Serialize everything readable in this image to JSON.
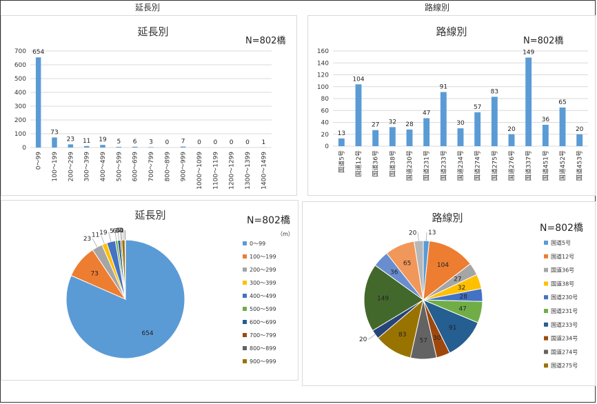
{
  "sections": {
    "left": "延長別",
    "right": "路線別"
  },
  "colors": {
    "bar": "#5b9bd5",
    "grid": "#d9d9d9",
    "length_pie": [
      "#5b9bd5",
      "#ed7d31",
      "#a5a5a5",
      "#ffc000",
      "#4472c4",
      "#70ad47",
      "#255e91",
      "#9e480e",
      "#636363",
      "#997300",
      "#264478",
      "#43682b",
      "#698ed0",
      "#f1975a",
      "#b7b7b7"
    ],
    "route_pie": [
      "#5b9bd5",
      "#ed7d31",
      "#a5a5a5",
      "#ffc000",
      "#4472c4",
      "#70ad47",
      "#255e91",
      "#9e480e",
      "#636363",
      "#997300",
      "#264478",
      "#43682b",
      "#698ed0",
      "#f1975a",
      "#b7b7b7"
    ]
  },
  "chart_data": [
    {
      "id": "length-bar",
      "type": "bar",
      "title": "延長別",
      "annotation": "N=802橋",
      "categories": [
        "0～99",
        "100～199",
        "200～299",
        "300～399",
        "400～499",
        "500～599",
        "600～699",
        "700～799",
        "800～899",
        "900～999",
        "1000～1099",
        "1100～1199",
        "1200～1299",
        "1300～1399",
        "1400～1499"
      ],
      "values": [
        654,
        73,
        23,
        11,
        19,
        5,
        6,
        3,
        0,
        7,
        0,
        0,
        0,
        0,
        1
      ],
      "ylim": [
        0,
        700
      ],
      "yticks": [
        "0",
        "100",
        "200",
        "300",
        "400",
        "500",
        "600",
        "700"
      ],
      "grid": true
    },
    {
      "id": "route-bar",
      "type": "bar",
      "title": "路線別",
      "annotation": "N=802橋",
      "categories": [
        "国道5号",
        "国道12号",
        "国道36号",
        "国道38号",
        "国道230号",
        "国道231号",
        "国道233号",
        "国道234号",
        "国道274号",
        "国道275号",
        "国道276号",
        "国道337号",
        "国道451号",
        "国道452号",
        "国道453号"
      ],
      "values": [
        13,
        104,
        27,
        32,
        28,
        47,
        91,
        30,
        57,
        83,
        20,
        149,
        36,
        65,
        20
      ],
      "ylim": [
        0,
        160
      ],
      "yticks": [
        "0",
        "20",
        "40",
        "60",
        "80",
        "100",
        "120",
        "140",
        "160"
      ],
      "grid": true
    },
    {
      "id": "length-pie",
      "type": "pie",
      "title": "延長別",
      "annotation": "N=802橋",
      "unit": "（m）",
      "categories": [
        "0～99",
        "100～199",
        "200～299",
        "300～399",
        "400～499",
        "500～599",
        "600～699",
        "700～799",
        "800～899",
        "900～999",
        "1000～1099",
        "1100～1199",
        "1200～1299",
        "1300～1399",
        "1400～1499"
      ],
      "values": [
        654,
        73,
        23,
        11,
        19,
        5,
        6,
        3,
        0,
        7,
        0,
        0,
        0,
        0,
        1
      ],
      "legend_visible": [
        "0～99",
        "100～199",
        "200～299",
        "300～399",
        "400～499",
        "500～599",
        "600～699",
        "700～799",
        "800～899",
        "900～999"
      ],
      "legend": "right"
    },
    {
      "id": "route-pie",
      "type": "pie",
      "title": "路線別",
      "annotation": "N=802橋",
      "categories": [
        "国道5号",
        "国道12号",
        "国道36号",
        "国道38号",
        "国道230号",
        "国道231号",
        "国道233号",
        "国道234号",
        "国道274号",
        "国道275号",
        "国道276号",
        "国道337号",
        "国道451号",
        "国道452号",
        "国道453号"
      ],
      "values": [
        13,
        104,
        27,
        32,
        28,
        47,
        91,
        30,
        57,
        83,
        20,
        149,
        36,
        65,
        20
      ],
      "legend_visible": [
        "国道5号",
        "国道12号",
        "国道36号",
        "国道38号",
        "国道230号",
        "国道231号",
        "国道233号",
        "国道234号",
        "国道274号",
        "国道275号"
      ],
      "legend": "right"
    }
  ]
}
